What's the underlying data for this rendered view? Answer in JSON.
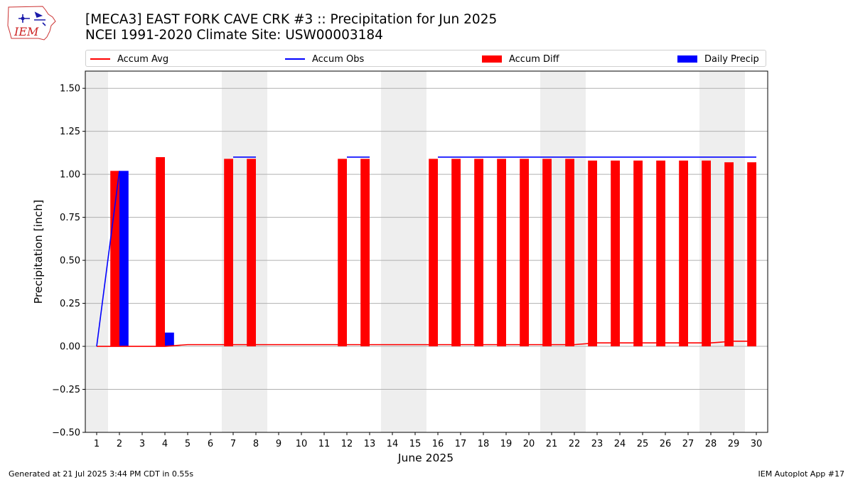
{
  "header": {
    "logo_text": "IEM",
    "title_line1": "[MECA3] EAST FORK CAVE CRK #3 :: Precipitation for Jun 2025",
    "title_line2": "NCEI 1991-2020 Climate Site: USW00003184"
  },
  "footer": {
    "left": "Generated at 21 Jul 2025 3:44 PM CDT in 0.55s",
    "right": "IEM Autoplot App #17"
  },
  "colors": {
    "accum_avg": "#ff0000",
    "accum_obs": "#0000ff",
    "accum_diff": "#ff0000",
    "daily_precip": "#0000ff",
    "weekend_shade": "#eeeeee",
    "grid": "#b0b0b0"
  },
  "chart_data": {
    "type": "bar",
    "xlabel": "June 2025",
    "ylabel": "Precipitation [inch]",
    "ylim": [
      -0.5,
      1.6
    ],
    "yticks": [
      -0.5,
      -0.25,
      0.0,
      0.25,
      0.5,
      0.75,
      1.0,
      1.25,
      1.5
    ],
    "ytick_labels": [
      "−0.50",
      "−0.25",
      "0.00",
      "0.25",
      "0.50",
      "0.75",
      "1.00",
      "1.25",
      "1.50"
    ],
    "grid": "horizontal",
    "legend_placement": "top",
    "categories": [
      "1",
      "2",
      "3",
      "4",
      "5",
      "6",
      "7",
      "8",
      "9",
      "10",
      "11",
      "12",
      "13",
      "14",
      "15",
      "16",
      "17",
      "18",
      "19",
      "20",
      "21",
      "22",
      "23",
      "24",
      "25",
      "26",
      "27",
      "28",
      "29",
      "30"
    ],
    "weekend_days": [
      1,
      7,
      8,
      14,
      15,
      21,
      22,
      28,
      29
    ],
    "series": [
      {
        "name": "Accum Avg",
        "kind": "line",
        "values": [
          0.0,
          0.0,
          0.0,
          0.0,
          0.01,
          0.01,
          0.01,
          0.01,
          0.01,
          0.01,
          0.01,
          0.01,
          0.01,
          0.01,
          0.01,
          0.01,
          0.01,
          0.01,
          0.01,
          0.01,
          0.01,
          0.01,
          0.02,
          0.02,
          0.02,
          0.02,
          0.02,
          0.02,
          0.03,
          0.03
        ]
      },
      {
        "name": "Accum Obs",
        "kind": "line",
        "values": [
          0.0,
          1.02,
          null,
          null,
          null,
          null,
          1.1,
          1.1,
          null,
          null,
          null,
          1.1,
          1.1,
          null,
          null,
          1.1,
          1.1,
          1.1,
          1.1,
          1.1,
          1.1,
          1.1,
          1.1,
          1.1,
          1.1,
          1.1,
          1.1,
          1.1,
          1.1,
          1.1
        ]
      },
      {
        "name": "Accum Diff",
        "kind": "bar",
        "values": [
          null,
          1.02,
          null,
          1.1,
          null,
          null,
          1.09,
          1.09,
          null,
          null,
          null,
          1.09,
          1.09,
          null,
          null,
          1.09,
          1.09,
          1.09,
          1.09,
          1.09,
          1.09,
          1.09,
          1.08,
          1.08,
          1.08,
          1.08,
          1.08,
          1.08,
          1.07,
          1.07
        ]
      },
      {
        "name": "Daily Precip",
        "kind": "bar",
        "values": [
          0,
          1.02,
          0,
          0.08,
          0,
          0,
          0,
          0,
          0,
          0,
          0,
          0,
          0,
          0,
          0,
          0,
          0,
          0,
          0,
          0,
          0,
          0,
          0,
          0,
          0,
          0,
          0,
          0,
          0,
          0
        ]
      }
    ]
  }
}
